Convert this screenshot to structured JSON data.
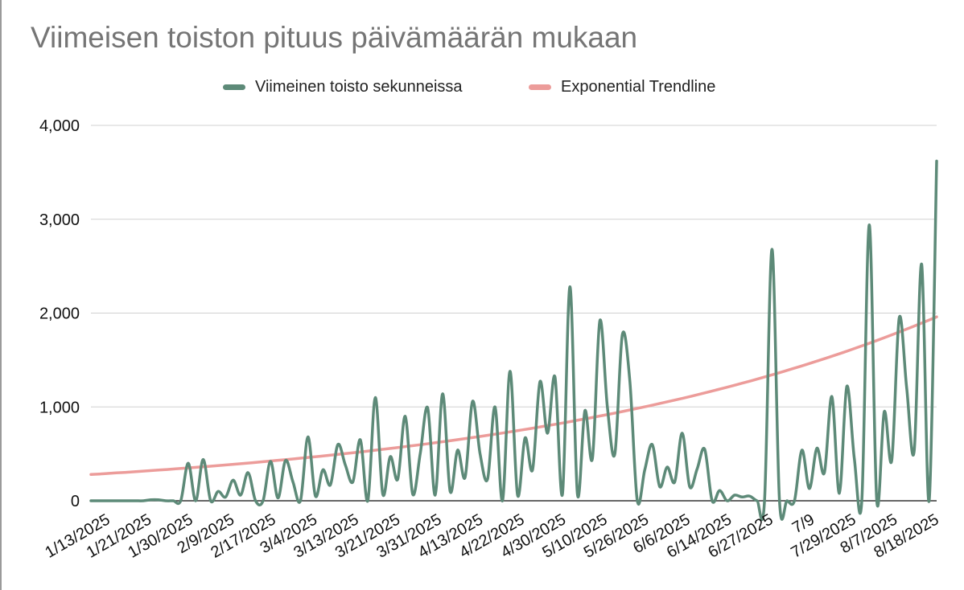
{
  "chart_data": {
    "type": "line",
    "title": "Viimeisen toiston pituus päivämäärän mukaan",
    "xlabel": "",
    "ylabel": "",
    "ylim": [
      0,
      4000
    ],
    "y_ticks": [
      "0",
      "1,000",
      "2,000",
      "3,000",
      "4,000"
    ],
    "y_tick_values": [
      0,
      1000,
      2000,
      3000,
      4000
    ],
    "x_tick_labels": [
      "1/13/2025",
      "1/21/2025",
      "1/30/2025",
      "2/9/2025",
      "2/17/2025",
      "3/4/2025",
      "3/13/2025",
      "3/21/2025",
      "3/31/2025",
      "4/13/2025",
      "4/22/2025",
      "4/30/2025",
      "5/10/2025",
      "5/26/2025",
      "6/6/2025",
      "6/14/2025",
      "6/27/2025",
      "7/9",
      "7/29/2025",
      "8/7/2025",
      "8/18/2025"
    ],
    "grid": true,
    "legend_position": "top",
    "colors": {
      "series": "#5d8a78",
      "trendline": "#ec9c9a",
      "grid": "#d0d0d0",
      "title": "#757575"
    },
    "series": [
      {
        "name": "Viimeinen toisto sekunneissa",
        "values": [
          0,
          0,
          0,
          0,
          0,
          0,
          0,
          0,
          10,
          10,
          0,
          0,
          0,
          400,
          0,
          440,
          0,
          100,
          40,
          220,
          60,
          300,
          0,
          0,
          420,
          30,
          430,
          200,
          0,
          680,
          50,
          330,
          170,
          600,
          380,
          200,
          650,
          0,
          1100,
          70,
          470,
          230,
          900,
          70,
          500,
          990,
          60,
          1140,
          100,
          540,
          250,
          1060,
          500,
          230,
          1000,
          0,
          1380,
          60,
          670,
          330,
          1270,
          720,
          1320,
          70,
          2280,
          70,
          960,
          450,
          1920,
          1000,
          500,
          1770,
          1280,
          0,
          330,
          600,
          150,
          360,
          200,
          720,
          150,
          340,
          550,
          0,
          110,
          0,
          60,
          40,
          50,
          0,
          0,
          2680,
          0,
          0,
          0,
          540,
          130,
          560,
          300,
          1110,
          80,
          1220,
          450,
          0,
          2940,
          0,
          950,
          430,
          1950,
          1200,
          530,
          2520,
          0,
          3620
        ]
      }
    ],
    "trendline": {
      "name": "Exponential Trendline",
      "type": "exponential",
      "start_value": 280,
      "end_value": 1960
    }
  }
}
